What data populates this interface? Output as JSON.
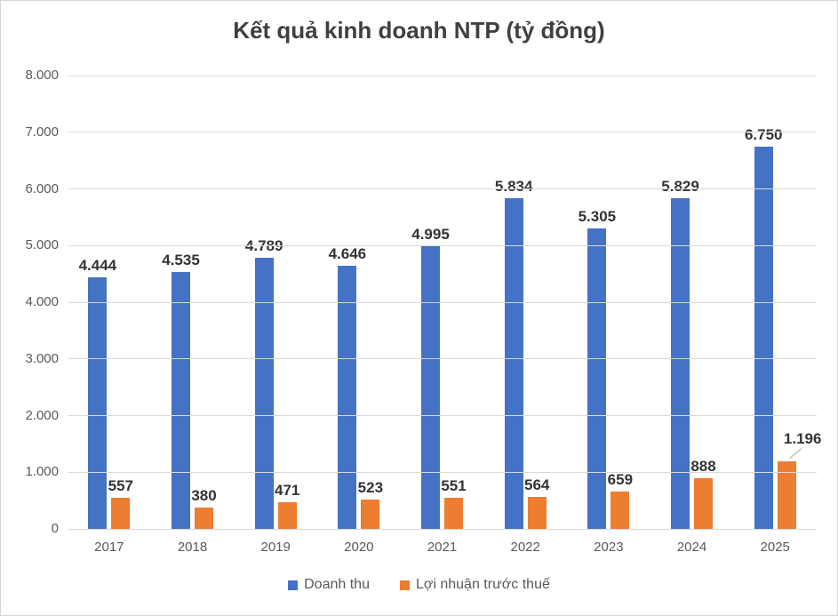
{
  "title": "Kết quả kinh doanh NTP (tỷ đồng)",
  "colors": {
    "revenue": "#4472C4",
    "profit": "#ED7D31",
    "gridline": "#D9D9D9",
    "axis_text": "#595959",
    "data_label_text": "#333333",
    "title_text": "#404040",
    "leader_line": "#A6A6A6"
  },
  "chart_data": {
    "type": "bar",
    "title": "Kết quả kinh doanh NTP (tỷ đồng)",
    "categories": [
      "2017",
      "2018",
      "2019",
      "2020",
      "2021",
      "2022",
      "2023",
      "2024",
      "2025"
    ],
    "series": [
      {
        "name": "Doanh thu",
        "color_key": "revenue",
        "values": [
          4444,
          4535,
          4789,
          4646,
          4995,
          5834,
          5305,
          5829,
          6750
        ],
        "labels": [
          "4.444",
          "4.535",
          "4.789",
          "4.646",
          "4.995",
          "5.834",
          "5.305",
          "5.829",
          "6.750"
        ]
      },
      {
        "name": "Lợi nhuận trước thuế",
        "color_key": "profit",
        "values": [
          557,
          380,
          471,
          523,
          551,
          564,
          659,
          888,
          1196
        ],
        "labels": [
          "557",
          "380",
          "471",
          "523",
          "551",
          "564",
          "659",
          "888",
          "1.196"
        ],
        "callout_index": 8
      }
    ],
    "xlabel": "",
    "ylabel": "",
    "ylim": [
      0,
      8000
    ],
    "ytick_step": 1000,
    "ytick_labels": [
      "0",
      "1.000",
      "2.000",
      "3.000",
      "4.000",
      "5.000",
      "6.000",
      "7.000",
      "8.000"
    ],
    "grid": true,
    "legend_position": "bottom"
  }
}
